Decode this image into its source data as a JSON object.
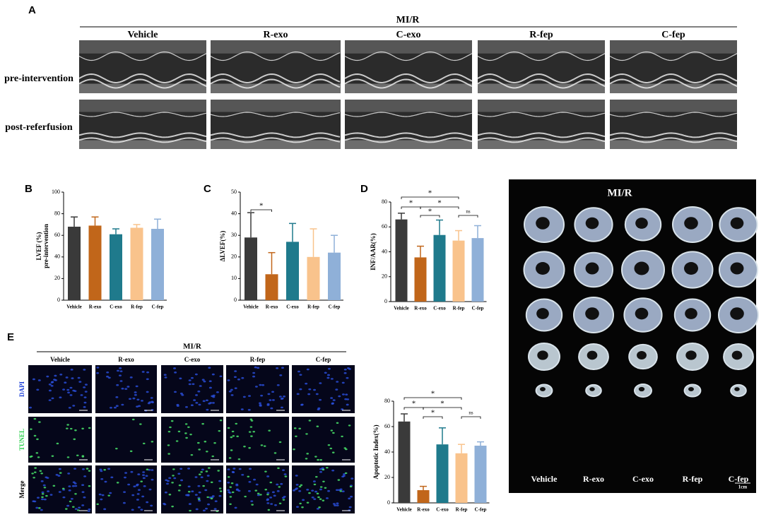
{
  "figure": {
    "panel_labels": [
      "A",
      "B",
      "C",
      "D",
      "E"
    ],
    "echo": {
      "group": "MI/R",
      "columns": [
        "Vehicle",
        "R-exo",
        "C-exo",
        "R-fep",
        "C-fep"
      ],
      "rows": [
        "pre-intervention",
        "post-referfusion"
      ]
    },
    "heart_photo": {
      "group": "MI/R",
      "columns": [
        "Vehicle",
        "R-exo",
        "C-exo",
        "R-fep",
        "C-fep"
      ],
      "scale": "1cm"
    },
    "tunel": {
      "group": "MI/R",
      "columns": [
        "Vehicle",
        "R-exo",
        "C-exo",
        "R-fep",
        "C-fep"
      ],
      "rows": [
        "DAPI",
        "TUNEL",
        "Merge"
      ]
    }
  },
  "chart_data": [
    {
      "type": "bar",
      "y_label": [
        "LVEF (%)",
        "pre-intervention"
      ],
      "categories": [
        "Vehicle",
        "R-exo",
        "C-exo",
        "R-fep",
        "C-fep"
      ],
      "values": [
        68,
        69,
        61,
        67,
        66
      ],
      "errors": [
        9,
        8,
        5,
        3,
        9
      ],
      "colors": [
        "#3a3a3a",
        "#c1661a",
        "#1f7a8c",
        "#f9c38c",
        "#8fb0d8"
      ],
      "ylim": [
        0,
        100
      ],
      "yticks": [
        0,
        20,
        40,
        60,
        80,
        100
      ],
      "annotations": []
    },
    {
      "type": "bar",
      "y_label": [
        "ΔLVEF(%)"
      ],
      "categories": [
        "Vehicle",
        "R-exo",
        "C-exo",
        "R-fep",
        "C-fep"
      ],
      "values": [
        29,
        12,
        27,
        20,
        22
      ],
      "errors": [
        11.5,
        10,
        8.5,
        13,
        8
      ],
      "colors": [
        "#3a3a3a",
        "#c1661a",
        "#1f7a8c",
        "#f9c38c",
        "#8fb0d8"
      ],
      "ylim": [
        0,
        50
      ],
      "yticks": [
        0,
        10,
        20,
        30,
        40,
        50
      ],
      "annotations": [
        {
          "label": "*",
          "from": 0,
          "to": 1
        }
      ]
    },
    {
      "type": "bar",
      "y_label": [
        "INF/AAR(%)"
      ],
      "categories": [
        "Vehicle",
        "R-exo",
        "C-exo",
        "R-fep",
        "C-fep"
      ],
      "values": [
        66,
        35.5,
        53.5,
        49,
        51
      ],
      "errors": [
        5,
        9,
        12,
        8,
        10
      ],
      "colors": [
        "#3a3a3a",
        "#c1661a",
        "#1f7a8c",
        "#f9c38c",
        "#8fb0d8"
      ],
      "ylim": [
        0,
        80
      ],
      "yticks": [
        0,
        20,
        40,
        60,
        80
      ],
      "annotations": [
        {
          "label": "*",
          "from": 0,
          "to": 3
        },
        {
          "label": "*",
          "from": 0,
          "to": 1
        },
        {
          "label": "*",
          "from": 1,
          "to": 3
        },
        {
          "label": "*",
          "from": 1,
          "to": 2
        },
        {
          "label": "ns",
          "from": 3,
          "to": 4
        }
      ]
    },
    {
      "type": "bar",
      "y_label": [
        "Apoptotic Index(%)"
      ],
      "categories": [
        "Vehicle",
        "R-exo",
        "C-exo",
        "R-fep",
        "C-fep"
      ],
      "values": [
        64,
        10,
        46,
        39,
        45
      ],
      "errors": [
        6,
        3,
        13,
        7,
        3
      ],
      "colors": [
        "#3a3a3a",
        "#c1661a",
        "#1f7a8c",
        "#f9c38c",
        "#8fb0d8"
      ],
      "ylim": [
        0,
        80
      ],
      "yticks": [
        0,
        20,
        40,
        60,
        80
      ],
      "annotations": [
        {
          "label": "*",
          "from": 0,
          "to": 3
        },
        {
          "label": "*",
          "from": 0,
          "to": 1
        },
        {
          "label": "*",
          "from": 1,
          "to": 3
        },
        {
          "label": "*",
          "from": 1,
          "to": 2
        },
        {
          "label": "ns",
          "from": 3,
          "to": 4
        }
      ]
    }
  ]
}
